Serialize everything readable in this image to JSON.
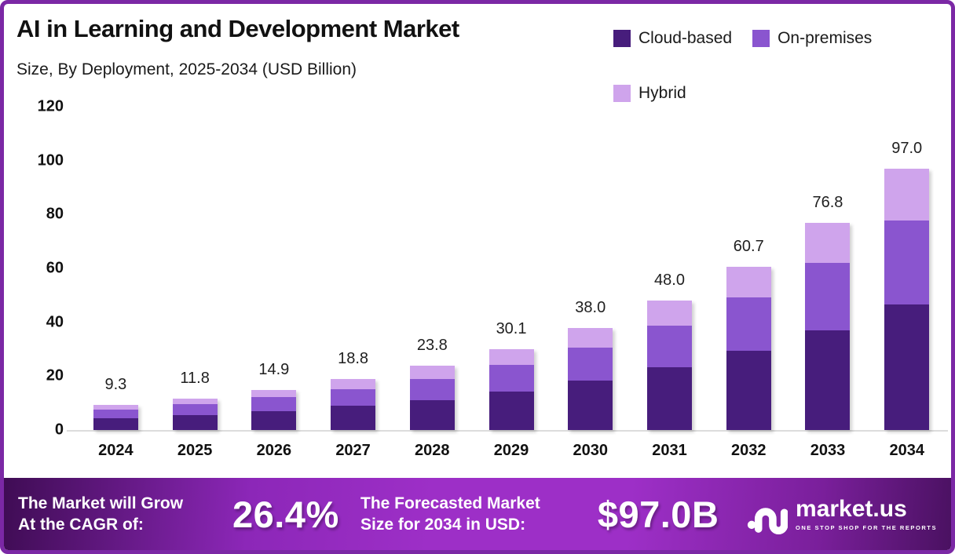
{
  "header": {
    "title": "AI in Learning and Development Market",
    "subtitle": "Size, By Deployment, 2025-2034 (USD Billion)"
  },
  "colors": {
    "cloud": "#471d7c",
    "onprem": "#8a55cf",
    "hybrid": "#cfa4ec",
    "frame_border": "#7b28a5"
  },
  "chart_data": {
    "type": "bar",
    "stacked": true,
    "title": "AI in Learning and Development Market Size, By Deployment, 2025-2034 (USD Billion)",
    "categories": [
      "2024",
      "2025",
      "2026",
      "2027",
      "2028",
      "2029",
      "2030",
      "2031",
      "2032",
      "2033",
      "2034"
    ],
    "series": [
      {
        "name": "Cloud-based",
        "color": "#471d7c",
        "values": [
          4.5,
          5.6,
          7.0,
          9.0,
          11.2,
          14.4,
          18.3,
          23.3,
          29.5,
          37.1,
          46.5
        ]
      },
      {
        "name": "On-premises",
        "color": "#8a55cf",
        "values": [
          3.1,
          3.9,
          5.2,
          6.1,
          7.8,
          9.9,
          12.4,
          15.5,
          19.6,
          25.0,
          31.3
        ]
      },
      {
        "name": "Hybrid",
        "color": "#cfa4ec",
        "values": [
          1.7,
          2.3,
          2.7,
          3.7,
          4.8,
          5.8,
          7.3,
          9.2,
          11.6,
          14.7,
          19.2
        ]
      }
    ],
    "totals": [
      9.3,
      11.8,
      14.9,
      18.8,
      23.8,
      30.1,
      38.0,
      48.0,
      60.7,
      76.8,
      97.0
    ],
    "total_labels": [
      "9.3",
      "11.8",
      "14.9",
      "18.8",
      "23.8",
      "30.1",
      "38.0",
      "48.0",
      "60.7",
      "76.8",
      "97.0"
    ],
    "y_ticks": [
      0,
      20,
      40,
      60,
      80,
      100,
      120
    ],
    "ylim": [
      0,
      120
    ],
    "xlabel": "",
    "ylabel": "",
    "grid": false,
    "legend_position": "top-right"
  },
  "footer": {
    "cagr_label_line1": "The Market will Grow",
    "cagr_label_line2": "At the CAGR of:",
    "cagr_value": "26.4%",
    "forecast_label_line1": "The Forecasted Market",
    "forecast_label_line2": "Size for 2034 in USD:",
    "forecast_value": "$97.0B",
    "brand": {
      "name": "market.us",
      "tagline": "ONE STOP SHOP FOR THE REPORTS",
      "icon": "marketus-wave-icon"
    }
  }
}
